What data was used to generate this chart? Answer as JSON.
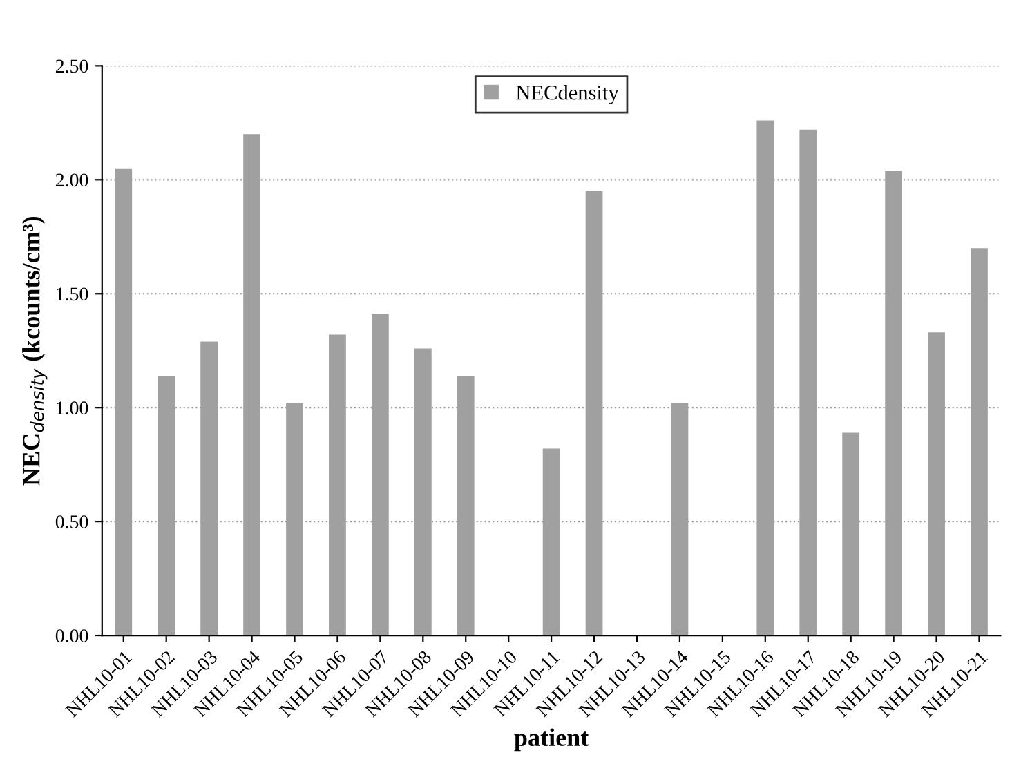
{
  "chart_data": {
    "type": "bar",
    "xlabel": "patient",
    "ylabel": "NEC$_{density}$ (kcounts/cm³)",
    "categories": [
      "NHL10-01",
      "NHL10-02",
      "NHL10-03",
      "NHL10-04",
      "NHL10-05",
      "NHL10-06",
      "NHL10-07",
      "NHL10-08",
      "NHL10-09",
      "NHL10-10",
      "NHL10-11",
      "NHL10-12",
      "NHL10-13",
      "NHL10-14",
      "NHL10-15",
      "NHL10-16",
      "NHL10-17",
      "NHL10-18",
      "NHL10-19",
      "NHL10-20",
      "NHL10-21"
    ],
    "series": [
      {
        "name": "NECdensity",
        "color": "#a0a0a0",
        "values": [
          2.05,
          1.14,
          1.29,
          2.2,
          1.02,
          1.32,
          1.41,
          1.26,
          1.14,
          null,
          0.82,
          1.95,
          null,
          1.02,
          null,
          2.26,
          2.22,
          0.89,
          2.04,
          1.33,
          1.7
        ]
      }
    ],
    "ylim": [
      0,
      2.5
    ],
    "yticks": [
      {
        "value": 0,
        "label": "0.00"
      },
      {
        "value": 0.5,
        "label": "0.50"
      },
      {
        "value": 1,
        "label": "1.00"
      },
      {
        "value": 1.5,
        "label": "1.50"
      },
      {
        "value": 2,
        "label": "2.00"
      },
      {
        "value": 2.5,
        "label": "2.50"
      }
    ],
    "grid": "y",
    "legend": "top"
  }
}
